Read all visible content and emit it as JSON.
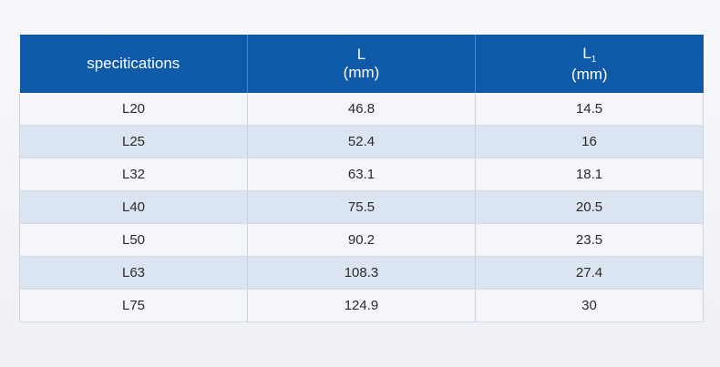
{
  "table": {
    "headers": [
      {
        "line1": "specitications",
        "line1_sub": "",
        "line2": ""
      },
      {
        "line1": "L",
        "line1_sub": "",
        "line2": "(mm)"
      },
      {
        "line1": "L",
        "line1_sub": "1",
        "line2": "(mm)"
      }
    ],
    "rows": [
      [
        "L20",
        "46.8",
        "14.5"
      ],
      [
        "L25",
        "52.4",
        "16"
      ],
      [
        "L32",
        "63.1",
        "18.1"
      ],
      [
        "L40",
        "75.5",
        "20.5"
      ],
      [
        "L50",
        "90.2",
        "23.5"
      ],
      [
        "L63",
        "108.3",
        "27.4"
      ],
      [
        "L75",
        "124.9",
        "30"
      ]
    ]
  },
  "colors": {
    "header_bg": "#0f5aa8",
    "header_text": "#ffffff",
    "row_light": "#f5f6f9",
    "row_blue": "#dbe4f1"
  }
}
